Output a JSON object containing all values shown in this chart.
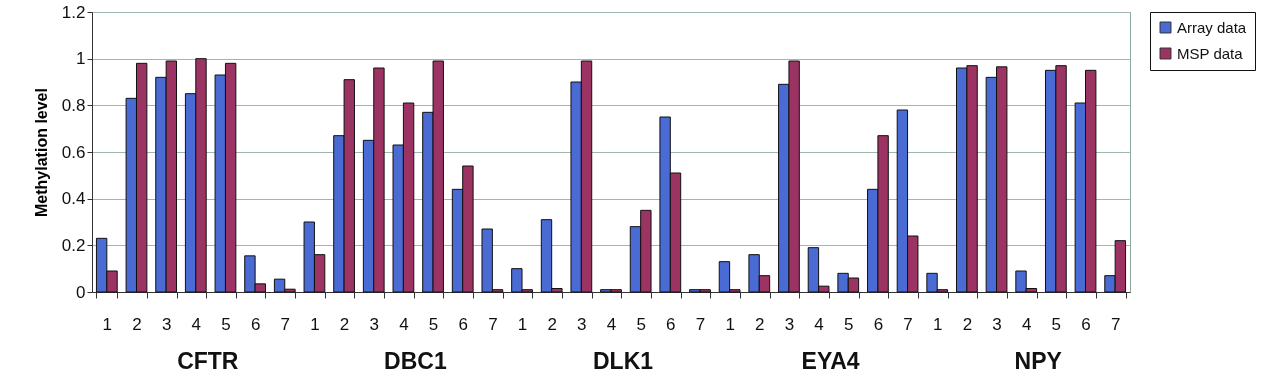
{
  "chart_data": {
    "type": "bar",
    "ylabel": "Methylation level",
    "categories": [
      "1",
      "2",
      "3",
      "4",
      "5",
      "6",
      "7",
      "1",
      "2",
      "3",
      "4",
      "5",
      "6",
      "7",
      "1",
      "2",
      "3",
      "4",
      "5",
      "6",
      "7",
      "1",
      "2",
      "3",
      "4",
      "5",
      "6",
      "7",
      "1",
      "2",
      "3",
      "4",
      "5",
      "6",
      "7"
    ],
    "annotations": [
      "CFTR",
      "DBC1",
      "DLK1",
      "EYA4",
      "NPY"
    ],
    "series": [
      {
        "name": "Array data",
        "color": "#4a6ad4",
        "values": [
          0.23,
          0.83,
          0.92,
          0.85,
          0.93,
          0.155,
          0.055,
          0.3,
          0.67,
          0.65,
          0.63,
          0.77,
          0.44,
          0.27,
          0.1,
          0.31,
          0.9,
          0.01,
          0.28,
          0.75,
          0.01,
          0.13,
          0.16,
          0.89,
          0.19,
          0.08,
          0.44,
          0.78,
          0.08,
          0.96,
          0.92,
          0.09,
          0.95,
          0.81,
          0.07
        ]
      },
      {
        "name": "MSP data",
        "color": "#9b3462",
        "values": [
          0.09,
          0.98,
          0.99,
          1.0,
          0.98,
          0.035,
          0.012,
          0.16,
          0.91,
          0.96,
          0.81,
          0.99,
          0.54,
          0.01,
          0.01,
          0.015,
          0.99,
          0.01,
          0.35,
          0.51,
          0.01,
          0.01,
          0.07,
          0.99,
          0.025,
          0.06,
          0.67,
          0.24,
          0.01,
          0.97,
          0.965,
          0.015,
          0.97,
          0.95,
          0.22
        ]
      }
    ],
    "ylim": [
      0,
      1.2
    ],
    "yticks": [
      0,
      0.2,
      0.4,
      0.6,
      0.8,
      1,
      1.2
    ],
    "grid": "y",
    "legend": "right"
  }
}
